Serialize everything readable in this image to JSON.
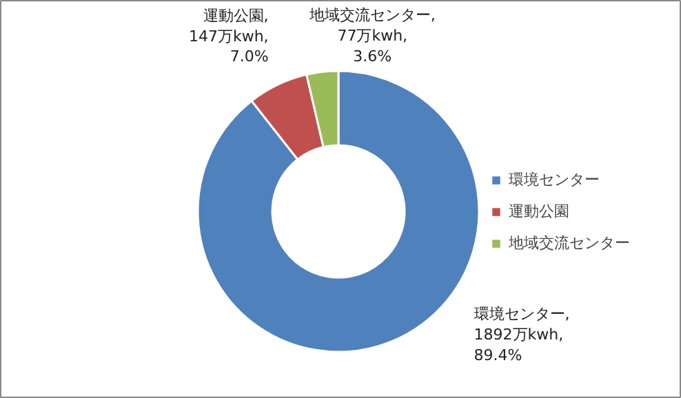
{
  "chart_data": {
    "type": "donut",
    "categories": [
      "環境センター",
      "運動公園",
      "地域交流センター"
    ],
    "values": [
      1892,
      147,
      77
    ],
    "colors": [
      "#4f81bd",
      "#c0504d",
      "#9bbb59"
    ],
    "value_labels": [
      "環境センター,\n1892万kwh,\n89.4%",
      "運動公園,\n147万kwh,\n7.0%",
      "地域交流センター,\n77万kwh,\n3.6%"
    ],
    "legend": "right"
  }
}
